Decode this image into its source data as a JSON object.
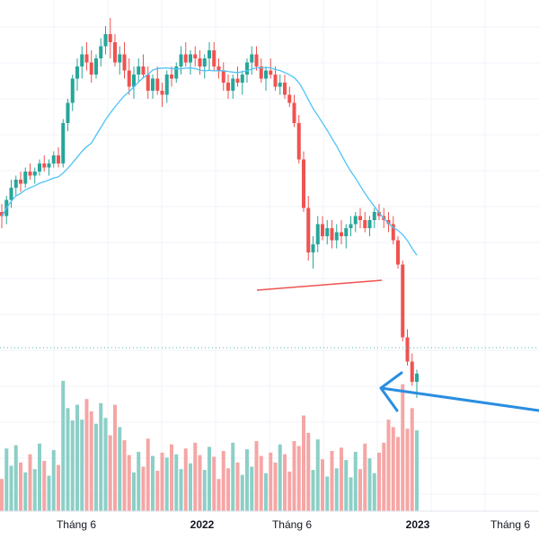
{
  "chart_data": {
    "type": "candlestick",
    "title": "",
    "x_ticks": [
      {
        "label": "Tháng 6",
        "bold": false
      },
      {
        "label": "2022",
        "bold": true
      },
      {
        "label": "Tháng 6",
        "bold": false
      },
      {
        "label": "2023",
        "bold": true
      },
      {
        "label": "Tháng 6",
        "bold": false
      }
    ],
    "price_range": [
      0,
      100
    ],
    "colors": {
      "up": "#26a69a",
      "down": "#ef5350",
      "volume_up": "#8ccfc7",
      "volume_down": "#f5a6a5",
      "moving_average": "#4fc3f7",
      "trendline": "#ef5350",
      "arrow": "#2a8ee0",
      "last_price_line": "#4db6ac",
      "grid": "#f0f3fa"
    },
    "show_grid": true,
    "series": [
      {
        "name": "",
        "type": "candlestick",
        "ohlc": []
      },
      {
        "name": "",
        "type": "ma",
        "values": []
      },
      {
        "name": "",
        "type": "volume",
        "values": []
      }
    ],
    "annotations": [
      {
        "type": "horizontal_trendline"
      },
      {
        "type": "arrow",
        "points_to": "last candle"
      }
    ]
  }
}
